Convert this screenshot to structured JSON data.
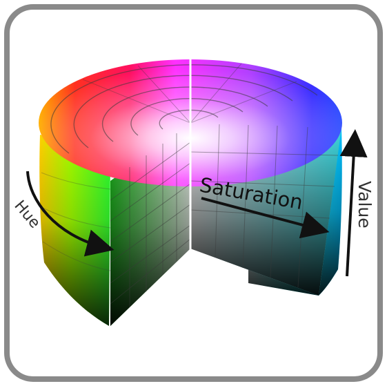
{
  "labels": {
    "hue": "Hue",
    "saturation": "Saturation",
    "value": "Value"
  },
  "colors": {
    "frame_border": "#8a8a8a",
    "frame_fill": "#ffffff",
    "arrow": "#111111",
    "label_text": "#333333",
    "divider": "#ffffff",
    "grid_line": "#3a3a3a"
  },
  "icons": {
    "hue_arrow": "curved-arrow-icon",
    "saturation_arrow": "arrow-right-icon",
    "value_arrow": "arrow-up-icon"
  }
}
